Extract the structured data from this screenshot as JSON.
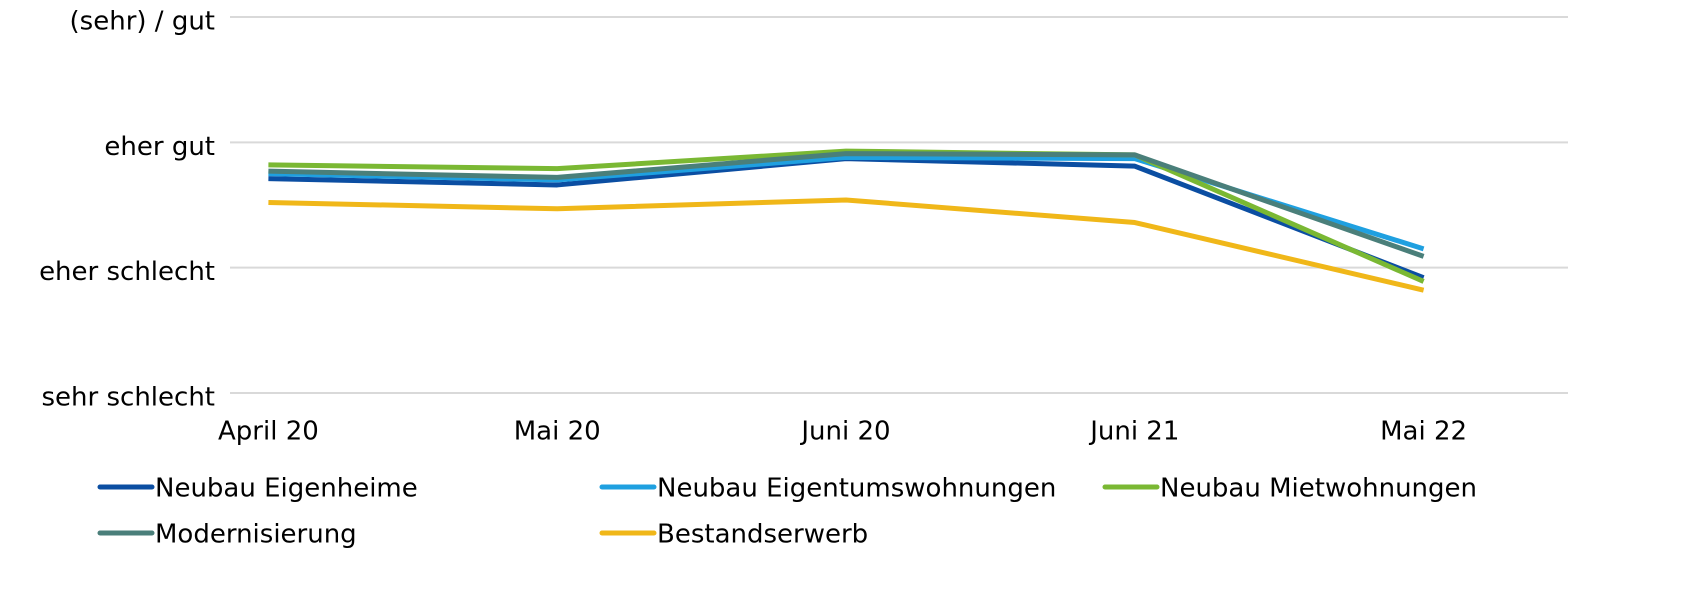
{
  "chart_data": {
    "type": "line",
    "categories": [
      "April 20",
      "Mai 20",
      "Juni 20",
      "Juni 21",
      "Mai 22"
    ],
    "ylim": [
      1,
      4
    ],
    "yticks": [
      {
        "value": 1,
        "label": "sehr schlecht"
      },
      {
        "value": 2,
        "label": "eher schlecht"
      },
      {
        "value": 3,
        "label": "eher gut"
      },
      {
        "value": 4,
        "label": "(sehr) / gut"
      }
    ],
    "grid": true,
    "series": [
      {
        "name": "Neubau Eigenheime",
        "color": "#0b4ea2",
        "values": [
          2.71,
          2.66,
          2.87,
          2.81,
          1.92
        ]
      },
      {
        "name": "Neubau Eigentumswohnungen",
        "color": "#1fa0e0",
        "values": [
          2.75,
          2.7,
          2.88,
          2.87,
          2.15
        ]
      },
      {
        "name": "Neubau Mietwohnungen",
        "color": "#7ab833",
        "values": [
          2.82,
          2.79,
          2.93,
          2.9,
          1.89
        ]
      },
      {
        "name": "Modernisierung",
        "color": "#4a7f7a",
        "values": [
          2.77,
          2.72,
          2.91,
          2.9,
          2.09
        ]
      },
      {
        "name": "Bestandserwerb",
        "color": "#f0b719",
        "values": [
          2.52,
          2.47,
          2.54,
          2.36,
          1.82
        ]
      }
    ]
  }
}
